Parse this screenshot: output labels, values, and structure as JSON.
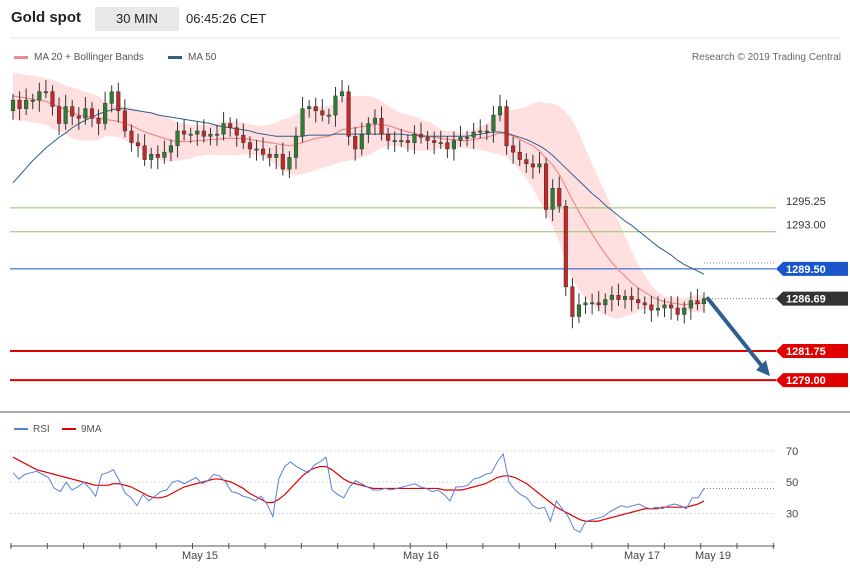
{
  "header": {
    "title": "Gold spot",
    "timeframe": "30 MIN",
    "time": "06:45:26 CET"
  },
  "legend": {
    "bollinger_label": "MA 20 + Bollinger Bands",
    "ma50_label": "MA 50",
    "copyright": "Research © 2019 Trading Central"
  },
  "colors": {
    "bollinger": "#f08a8a",
    "band_fill": "#ffd7d7",
    "ma50": "#2e5f8f",
    "candle_up": "#2e7d32",
    "candle_down": "#c62828",
    "support_green": "#8fc36b",
    "pivot_blue": "#1a56c9",
    "resistance_red": "#e00000",
    "last_price": "#333333",
    "rsi": "#5b7fd9",
    "rsi_ma": "#e00000",
    "arrow": "#2e5f8f"
  },
  "chart_data": [
    {
      "type": "candlestick",
      "name": "price",
      "y_range": [
        1276.0,
        1309.0
      ],
      "levels": [
        {
          "value": 1295.25,
          "label": "1295.25",
          "style": "green"
        },
        {
          "value": 1293.0,
          "label": "1293.00",
          "style": "green"
        },
        {
          "value": 1289.5,
          "label": "1289.50",
          "style": "blue"
        },
        {
          "value": 1286.69,
          "label": "1286.69",
          "style": "last"
        },
        {
          "value": 1281.75,
          "label": "1281.75",
          "style": "red"
        },
        {
          "value": 1279.0,
          "label": "1279.00",
          "style": "red"
        }
      ],
      "close": [
        1305.4,
        1304.6,
        1305.4,
        1305.4,
        1306.2,
        1306.2,
        1304.8,
        1303.2,
        1304.8,
        1303.9,
        1303.7,
        1304.6,
        1303.7,
        1303.2,
        1305.1,
        1306.2,
        1304.4,
        1302.5,
        1301.4,
        1301.1,
        1299.8,
        1300.3,
        1300.0,
        1300.5,
        1301.1,
        1302.5,
        1302.2,
        1302.2,
        1302.5,
        1302.0,
        1302.2,
        1302.2,
        1303.2,
        1302.8,
        1302.1,
        1301.4,
        1300.8,
        1300.8,
        1300.3,
        1300.0,
        1300.3,
        1298.9,
        1300.0,
        1302.0,
        1304.6,
        1304.8,
        1304.4,
        1304.0,
        1304.0,
        1305.8,
        1306.2,
        1302.0,
        1300.8,
        1302.2,
        1303.2,
        1303.7,
        1302.2,
        1301.6,
        1301.6,
        1301.6,
        1301.4,
        1302.2,
        1301.9,
        1301.6,
        1301.4,
        1301.4,
        1300.8,
        1301.6,
        1301.9,
        1301.9,
        1302.4,
        1302.5,
        1302.5,
        1304.0,
        1304.8,
        1301.1,
        1300.5,
        1299.8,
        1299.4,
        1299.1,
        1299.4,
        1295.1,
        1297.1,
        1295.4,
        1287.8,
        1285.0,
        1286.1,
        1286.3,
        1286.3,
        1286.1,
        1286.6,
        1287.0,
        1286.6,
        1286.9,
        1286.6,
        1286.3,
        1286.1,
        1285.6,
        1285.8,
        1286.1,
        1285.8,
        1285.2,
        1285.8,
        1286.5,
        1286.2,
        1286.69
      ],
      "open": [
        1304.4,
        1305.4,
        1304.6,
        1305.4,
        1305.4,
        1306.2,
        1306.2,
        1304.8,
        1303.2,
        1304.8,
        1303.9,
        1303.7,
        1304.6,
        1303.7,
        1303.2,
        1305.1,
        1306.2,
        1304.4,
        1302.5,
        1301.4,
        1301.1,
        1299.8,
        1300.3,
        1300.0,
        1300.5,
        1301.1,
        1302.5,
        1302.2,
        1302.2,
        1302.5,
        1302.0,
        1302.2,
        1302.2,
        1303.2,
        1302.8,
        1302.1,
        1301.4,
        1300.8,
        1300.8,
        1300.3,
        1300.0,
        1300.3,
        1298.9,
        1300.0,
        1302.0,
        1304.6,
        1304.8,
        1304.4,
        1304.0,
        1304.0,
        1305.8,
        1306.2,
        1302.0,
        1300.8,
        1302.2,
        1303.2,
        1303.7,
        1302.2,
        1301.6,
        1301.6,
        1301.6,
        1301.4,
        1302.2,
        1301.9,
        1301.6,
        1301.4,
        1301.4,
        1300.8,
        1301.6,
        1301.9,
        1301.9,
        1302.4,
        1302.5,
        1302.5,
        1304.0,
        1304.8,
        1301.1,
        1300.5,
        1299.8,
        1299.4,
        1299.1,
        1299.4,
        1295.1,
        1297.1,
        1295.4,
        1287.8,
        1285.0,
        1286.1,
        1286.3,
        1286.3,
        1286.1,
        1286.6,
        1287.0,
        1286.6,
        1286.9,
        1286.6,
        1286.3,
        1286.1,
        1285.6,
        1285.8,
        1286.1,
        1285.8,
        1285.2,
        1285.8,
        1286.5,
        1286.2
      ],
      "ma20": [
        1305.8,
        1305.7,
        1305.6,
        1305.5,
        1305.4,
        1305.3,
        1305.0,
        1304.8,
        1304.5,
        1304.2,
        1304.0,
        1303.9,
        1303.8,
        1303.7,
        1303.6,
        1303.5,
        1303.4,
        1303.2,
        1303.0,
        1302.7,
        1302.4,
        1302.2,
        1302.0,
        1301.8,
        1301.6,
        1301.5,
        1301.5,
        1301.5,
        1301.6,
        1301.6,
        1301.7,
        1301.7,
        1301.8,
        1301.8,
        1301.8,
        1301.8,
        1301.7,
        1301.6,
        1301.5,
        1301.4,
        1301.3,
        1301.2,
        1301.1,
        1301.2,
        1301.4,
        1301.6,
        1301.8,
        1301.9,
        1302.0,
        1302.3,
        1302.6,
        1302.7,
        1302.8,
        1302.9,
        1303.0,
        1303.1,
        1303.1,
        1303.0,
        1302.8,
        1302.6,
        1302.4,
        1302.3,
        1302.1,
        1302.0,
        1301.9,
        1301.8,
        1301.7,
        1301.7,
        1301.6,
        1301.6,
        1301.7,
        1301.8,
        1301.9,
        1302.1,
        1302.3,
        1302.2,
        1302.0,
        1301.7,
        1301.4,
        1301.1,
        1300.6,
        1299.9,
        1299.3,
        1298.4,
        1297.2,
        1296.0,
        1294.9,
        1293.8,
        1292.8,
        1291.8,
        1290.9,
        1290.1,
        1289.4,
        1288.8,
        1288.2,
        1287.7,
        1287.3,
        1286.9,
        1286.6,
        1286.4,
        1286.3,
        1286.2,
        1286.1,
        1286.2,
        1286.2,
        1286.3
      ],
      "ma50": [
        1297.6,
        1298.3,
        1299.0,
        1299.7,
        1300.3,
        1300.9,
        1301.4,
        1301.9,
        1302.3,
        1302.8,
        1303.2,
        1303.5,
        1303.8,
        1304.1,
        1304.3,
        1304.5,
        1304.6,
        1304.6,
        1304.5,
        1304.4,
        1304.3,
        1304.2,
        1304.0,
        1303.9,
        1303.8,
        1303.7,
        1303.6,
        1303.5,
        1303.4,
        1303.3,
        1303.2,
        1303.0,
        1302.9,
        1302.8,
        1302.7,
        1302.6,
        1302.5,
        1302.3,
        1302.2,
        1302.1,
        1302.0,
        1302.0,
        1302.0,
        1302.0,
        1302.0,
        1302.1,
        1302.1,
        1302.1,
        1302.1,
        1302.2,
        1302.2,
        1302.2,
        1302.2,
        1302.2,
        1302.2,
        1302.2,
        1302.2,
        1302.2,
        1302.2,
        1302.2,
        1302.1,
        1302.1,
        1302.0,
        1302.0,
        1302.0,
        1302.0,
        1302.0,
        1302.0,
        1302.0,
        1302.0,
        1302.1,
        1302.2,
        1302.3,
        1302.4,
        1302.4,
        1302.3,
        1302.1,
        1301.9,
        1301.7,
        1301.4,
        1301.1,
        1300.7,
        1300.2,
        1299.6,
        1299.0,
        1298.4,
        1297.8,
        1297.2,
        1296.6,
        1296.1,
        1295.5,
        1295.0,
        1294.5,
        1294.0,
        1293.6,
        1293.1,
        1292.6,
        1292.1,
        1291.6,
        1291.2,
        1290.8,
        1290.3,
        1289.9,
        1289.6,
        1289.3,
        1289.0
      ],
      "band_width": [
        2.2,
        2.2,
        2.2,
        2.2,
        2.2,
        2.2,
        2.3,
        2.3,
        2.3,
        2.4,
        2.4,
        2.3,
        2.2,
        2.1,
        1.6,
        1.5,
        1.5,
        1.6,
        1.7,
        1.8,
        1.9,
        2.1,
        2.2,
        2.1,
        2.0,
        1.8,
        1.7,
        1.6,
        1.5,
        1.4,
        1.4,
        1.5,
        1.6,
        1.6,
        1.6,
        1.5,
        1.4,
        1.4,
        1.5,
        1.7,
        2.0,
        2.4,
        2.6,
        2.9,
        3.0,
        3.0,
        3.0,
        2.9,
        2.8,
        2.9,
        3.0,
        3.0,
        3.0,
        2.9,
        2.8,
        2.5,
        2.2,
        1.9,
        1.7,
        1.6,
        1.6,
        1.6,
        1.5,
        1.4,
        1.2,
        0.9,
        0.8,
        0.8,
        0.7,
        0.8,
        0.9,
        1.1,
        1.3,
        1.7,
        2.0,
        2.2,
        2.5,
        2.9,
        3.4,
        4.0,
        4.7,
        5.2,
        5.8,
        6.4,
        7.1,
        7.5,
        7.4,
        7.0,
        6.6,
        6.2,
        5.8,
        5.2,
        4.6,
        3.8,
        3.0,
        2.2,
        1.6,
        1.0,
        0.7,
        0.5,
        0.5,
        0.6,
        0.6,
        0.7,
        0.8,
        0.8
      ]
    },
    {
      "type": "line",
      "name": "rsi",
      "y_range": [
        13,
        77
      ],
      "y_ticks": [
        70,
        50,
        30
      ],
      "legend": [
        "RSI",
        "9MA"
      ],
      "rsi": [
        56,
        52,
        55,
        56,
        57,
        55,
        53,
        46,
        44,
        50,
        45,
        47,
        50,
        46,
        41,
        55,
        56,
        58,
        51,
        43,
        40,
        35,
        42,
        38,
        41,
        44,
        45,
        50,
        51,
        49,
        51,
        53,
        49,
        51,
        55,
        54,
        50,
        44,
        43,
        41,
        40,
        38,
        41,
        36,
        28,
        52,
        60,
        63,
        60,
        58,
        56,
        61,
        63,
        66,
        45,
        42,
        40,
        47,
        51,
        49,
        47,
        45,
        45,
        46,
        45,
        46,
        47,
        48,
        49,
        47,
        46,
        44,
        45,
        42,
        38,
        47,
        47,
        48,
        52,
        53,
        55,
        56,
        63,
        68,
        50,
        45,
        42,
        40,
        35,
        33,
        34,
        25,
        38,
        33,
        28,
        20,
        18,
        25,
        26,
        27,
        28,
        31,
        33,
        35,
        34,
        35,
        36,
        34,
        33,
        34,
        33,
        35,
        36,
        35,
        33,
        40,
        40,
        46
      ],
      "rsi_ma": [
        66,
        64,
        62,
        60,
        58,
        57,
        56,
        55,
        54,
        53,
        52,
        51,
        50,
        49,
        48,
        48,
        48,
        49,
        49,
        48,
        47,
        45,
        43,
        41,
        40,
        40,
        41,
        43,
        45,
        47,
        48,
        49,
        50,
        51,
        52,
        52,
        51,
        50,
        48,
        46,
        43,
        41,
        39,
        37,
        37,
        39,
        42,
        46,
        50,
        54,
        57,
        59,
        60,
        60,
        58,
        55,
        52,
        50,
        49,
        48,
        47,
        46,
        46,
        46,
        46,
        46,
        46,
        46,
        46,
        46,
        46,
        46,
        46,
        45,
        45,
        45,
        45,
        46,
        47,
        48,
        49,
        51,
        53,
        54,
        54,
        53,
        51,
        49,
        46,
        43,
        40,
        37,
        34,
        32,
        30,
        28,
        26,
        25,
        25,
        25,
        26,
        27,
        28,
        29,
        30,
        31,
        32,
        33,
        33,
        33,
        34,
        34,
        34,
        34,
        34,
        35,
        36,
        38
      ],
      "rsi_ref_value": 46
    }
  ],
  "x_axis": {
    "labels": [
      "May 15",
      "May 16",
      "May 17",
      "May 19"
    ]
  }
}
